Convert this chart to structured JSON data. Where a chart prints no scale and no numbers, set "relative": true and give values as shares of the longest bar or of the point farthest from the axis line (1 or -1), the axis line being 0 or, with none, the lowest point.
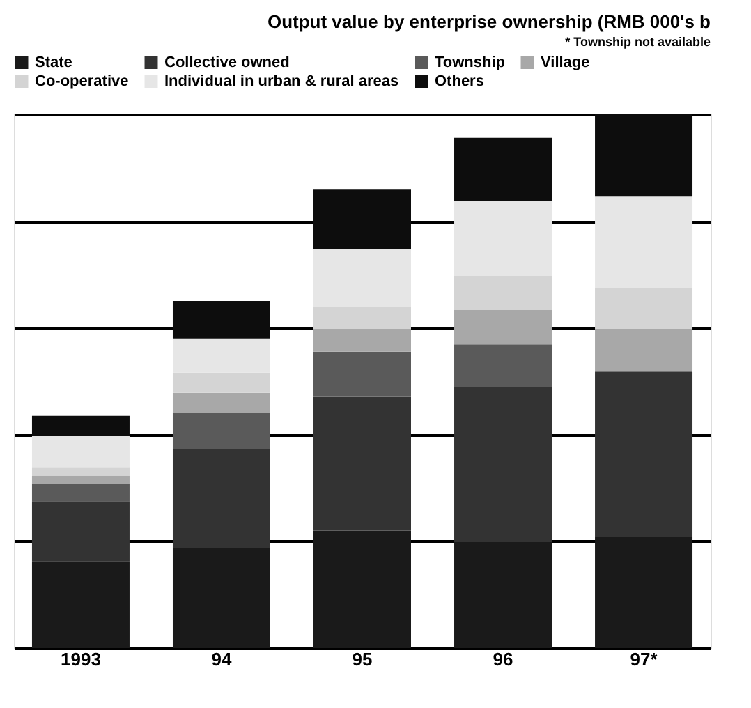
{
  "chart_data": {
    "type": "bar",
    "title": "Output value by enterprise ownership (RMB 000's b",
    "categories": [
      "1993",
      "94",
      "95",
      "96",
      "97*"
    ],
    "stacked": true,
    "relative": true,
    "grid": "y",
    "legend": "top",
    "series": [
      {
        "name": "State",
        "color": "#1a1a1a",
        "values": [
          0.163,
          0.188,
          0.22,
          0.198,
          0.208
        ]
      },
      {
        "name": "Collective owned",
        "color": "#333333",
        "values": [
          0.112,
          0.185,
          0.252,
          0.291,
          0.31
        ]
      },
      {
        "name": "Township",
        "color": "#5a5a5a",
        "values": [
          0.032,
          0.067,
          0.083,
          0.08,
          null
        ]
      },
      {
        "name": "Village",
        "color": "#a8a8a8",
        "values": [
          0.016,
          0.038,
          0.042,
          0.064,
          0.08
        ]
      },
      {
        "name": "Co-operative",
        "color": "#d4d4d4",
        "values": [
          0.016,
          0.038,
          0.042,
          0.064,
          0.076
        ]
      },
      {
        "name": "Individual in urban & rural areas",
        "color": "#e6e6e6",
        "values": [
          0.058,
          0.064,
          0.109,
          0.141,
          0.173
        ]
      },
      {
        "name": "Others",
        "color": "#0d0d0d",
        "values": [
          0.038,
          0.07,
          0.112,
          0.118,
          0.153
        ]
      }
    ],
    "annotations": [
      "* Township not available"
    ]
  }
}
